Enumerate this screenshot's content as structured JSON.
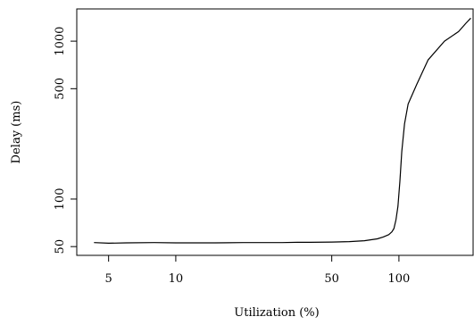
{
  "chart_data": {
    "type": "line",
    "title": "",
    "xlabel": "Utilization (%)",
    "ylabel": "Delay (ms)",
    "x_scale": "log",
    "y_scale": "log",
    "xlim": [
      3.6,
      215
    ],
    "ylim": [
      44,
      1600
    ],
    "x_ticks": [
      5,
      10,
      50,
      100
    ],
    "x_tick_labels": [
      "5",
      "10",
      "50",
      "100"
    ],
    "y_ticks": [
      50,
      100,
      500,
      1000
    ],
    "y_tick_labels": [
      "50",
      "100",
      "500",
      "1000"
    ],
    "grid": false,
    "legend": "none",
    "series": [
      {
        "color": "#000000",
        "x": [
          4.3,
          5,
          6,
          8,
          10,
          15,
          20,
          30,
          35,
          40,
          50,
          60,
          70,
          80,
          85,
          90,
          93,
          95,
          97,
          99,
          101,
          103,
          106,
          110,
          120,
          135,
          160,
          185,
          200,
          210
        ],
        "y": [
          53,
          52.5,
          52.8,
          53,
          52.8,
          52.8,
          53,
          53,
          53.2,
          53.2,
          53.4,
          53.8,
          54.5,
          56,
          57.5,
          59.5,
          62,
          65,
          74,
          90,
          130,
          200,
          300,
          400,
          530,
          760,
          1000,
          1150,
          1300,
          1400
        ]
      }
    ]
  }
}
